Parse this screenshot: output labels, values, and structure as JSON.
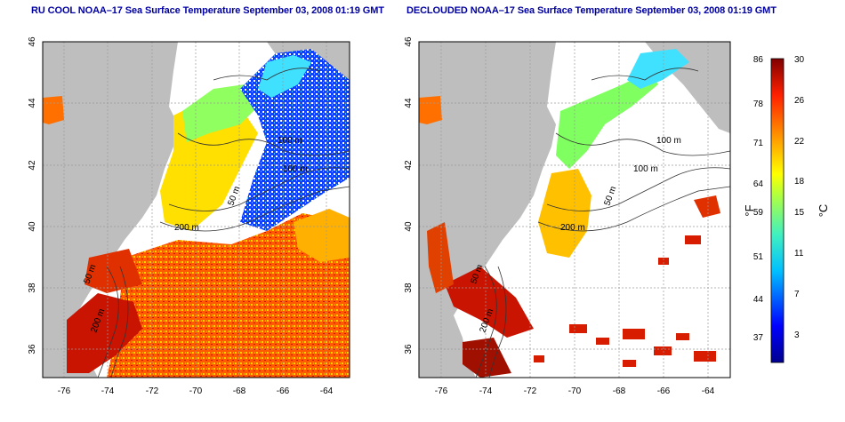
{
  "titles": {
    "left": "RU COOL NOAA–17 Sea Surface Temperature September 03, 2008 01:19 GMT",
    "right": "DECLOUDED NOAA–17 Sea Surface Temperature September 03, 2008 01:19 GMT"
  },
  "axes": {
    "lon_ticks": [
      "-76",
      "-74",
      "-72",
      "-70",
      "-68",
      "-66",
      "-64"
    ],
    "lat_ticks": [
      "36",
      "38",
      "40",
      "42",
      "44",
      "46"
    ]
  },
  "contour_labels": {
    "left": [
      "100 m",
      "100 m",
      "50 m",
      "200 m",
      "50 m",
      "200 m"
    ],
    "right": [
      "100 m",
      "100 m",
      "50 m",
      "200 m",
      "50 m",
      "200 m"
    ]
  },
  "colorbar": {
    "fahrenheit_ticks": [
      "86",
      "78",
      "71",
      "64",
      "59",
      "51",
      "44",
      "37"
    ],
    "celsius_ticks": [
      "30",
      "26",
      "22",
      "18",
      "15",
      "11",
      "7",
      "3"
    ],
    "unit_f": "°F",
    "unit_c": "°C"
  },
  "colors": {
    "land": "#bebebe",
    "cloud": "#ffffff",
    "title": "#0000a0",
    "grid": "#9a9a9a"
  }
}
